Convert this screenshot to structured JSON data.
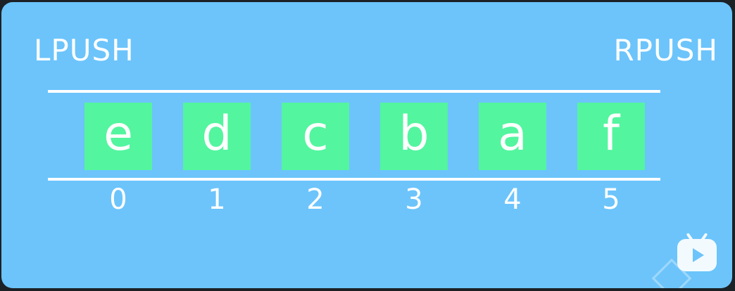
{
  "labels": {
    "left": "LPUSH",
    "right": "RPUSH"
  },
  "list": {
    "items": [
      "e",
      "d",
      "c",
      "b",
      "a",
      "f"
    ],
    "indices": [
      "0",
      "1",
      "2",
      "3",
      "4",
      "5"
    ]
  },
  "colors": {
    "background": "#6cc4fb",
    "cell": "#53f59f",
    "text": "#ffffff"
  },
  "overlay_icons": [
    "video-player-icon",
    "watermark-cube-icon"
  ]
}
